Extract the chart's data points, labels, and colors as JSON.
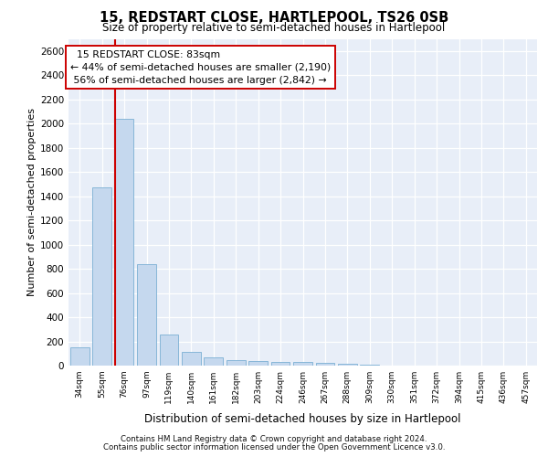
{
  "title1": "15, REDSTART CLOSE, HARTLEPOOL, TS26 0SB",
  "title2": "Size of property relative to semi-detached houses in Hartlepool",
  "xlabel": "Distribution of semi-detached houses by size in Hartlepool",
  "ylabel": "Number of semi-detached properties",
  "categories": [
    "34sqm",
    "55sqm",
    "76sqm",
    "97sqm",
    "119sqm",
    "140sqm",
    "161sqm",
    "182sqm",
    "203sqm",
    "224sqm",
    "246sqm",
    "267sqm",
    "288sqm",
    "309sqm",
    "330sqm",
    "351sqm",
    "372sqm",
    "394sqm",
    "415sqm",
    "436sqm",
    "457sqm"
  ],
  "values": [
    150,
    1470,
    2040,
    835,
    255,
    115,
    70,
    45,
    35,
    30,
    28,
    25,
    15,
    10,
    0,
    0,
    0,
    0,
    0,
    0,
    0
  ],
  "bar_color": "#c5d8ee",
  "bar_edge_color": "#7aafd4",
  "vline_color": "#cc0000",
  "vline_pos": 1.575,
  "annotation_line1": "15 REDSTART CLOSE: 83sqm",
  "annotation_line2": "← 44% of semi-detached houses are smaller (2,190)",
  "annotation_line3": "56% of semi-detached houses are larger (2,842) →",
  "ann_box_fc": "white",
  "ann_box_ec": "#cc0000",
  "ylim_max": 2700,
  "yticks": [
    0,
    200,
    400,
    600,
    800,
    1000,
    1200,
    1400,
    1600,
    1800,
    2000,
    2200,
    2400,
    2600
  ],
  "bg_color": "#e8eef8",
  "grid_color": "#ffffff",
  "footer1": "Contains HM Land Registry data © Crown copyright and database right 2024.",
  "footer2": "Contains public sector information licensed under the Open Government Licence v3.0."
}
